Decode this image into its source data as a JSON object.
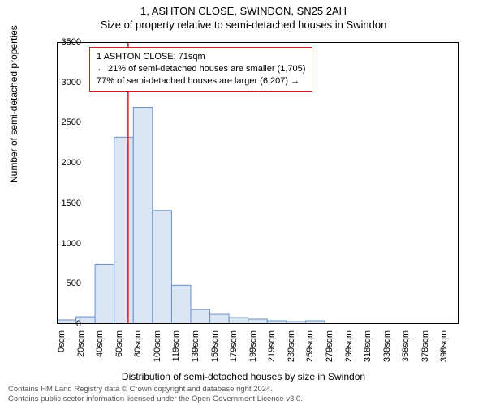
{
  "title": "1, ASHTON CLOSE, SWINDON, SN25 2AH",
  "subtitle": "Size of property relative to semi-detached houses in Swindon",
  "y_axis_label": "Number of semi-detached properties",
  "x_axis_label": "Distribution of semi-detached houses by size in Swindon",
  "footer_line1": "Contains HM Land Registry data © Crown copyright and database right 2024.",
  "footer_line2": "Contains public sector information licensed under the Open Government Licence v3.0.",
  "chart": {
    "type": "histogram",
    "ylim": [
      0,
      3500
    ],
    "yticks": [
      0,
      500,
      1000,
      1500,
      2000,
      2500,
      3000,
      3500
    ],
    "x_categories": [
      "0sqm",
      "20sqm",
      "40sqm",
      "60sqm",
      "80sqm",
      "100sqm",
      "119sqm",
      "139sqm",
      "159sqm",
      "179sqm",
      "199sqm",
      "219sqm",
      "239sqm",
      "259sqm",
      "279sqm",
      "299sqm",
      "318sqm",
      "338sqm",
      "358sqm",
      "378sqm",
      "398sqm"
    ],
    "values": [
      50,
      90,
      740,
      2320,
      2690,
      1410,
      480,
      180,
      120,
      80,
      60,
      40,
      30,
      40,
      0,
      0,
      0,
      0,
      0,
      0,
      0
    ],
    "bar_fill": "#dbe6f5",
    "bar_stroke": "#6a8fc5",
    "background_color": "#ffffff",
    "axis_color": "#000000",
    "bar_width_ratio": 1.0
  },
  "marker": {
    "x_value": 71,
    "x_domain_max": 400,
    "color": "#cc1f1f"
  },
  "info_box": {
    "line1": "1 ASHTON CLOSE: 71sqm",
    "line2": "← 21% of semi-detached houses are smaller (1,705)",
    "line3": "77% of semi-detached houses are larger (6,207) →",
    "border_color": "#cc1f1f",
    "background": "#ffffff"
  }
}
